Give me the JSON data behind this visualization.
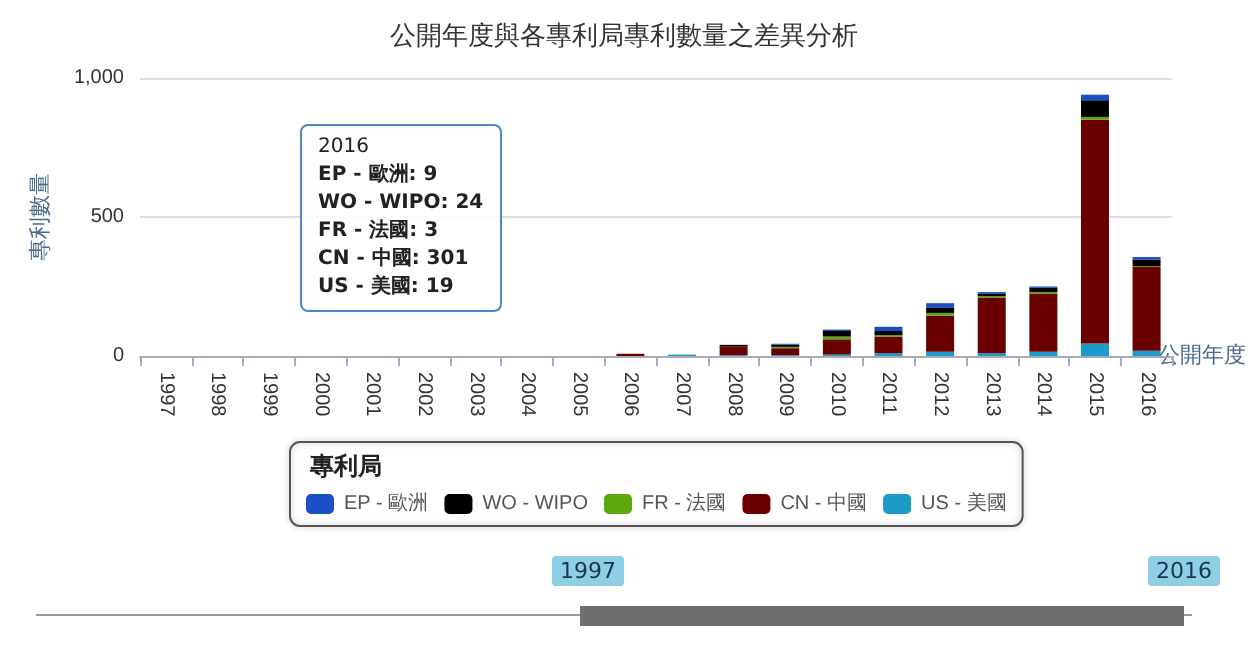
{
  "chart_data": {
    "type": "bar",
    "title": "公開年度與各專利局專利數量之差異分析",
    "xlabel": "公開年度",
    "ylabel": "專利數量",
    "legend_title": "專利局",
    "categories": [
      "1997",
      "1998",
      "1999",
      "2000",
      "2001",
      "2002",
      "2003",
      "2004",
      "2005",
      "2006",
      "2007",
      "2008",
      "2009",
      "2010",
      "2011",
      "2012",
      "2013",
      "2014",
      "2015",
      "2016"
    ],
    "stacked": true,
    "grid": "y",
    "legend": "bottom",
    "ylim": [
      0,
      1000
    ],
    "yticks": [
      0,
      {
        "value": 500,
        "label": "500"
      },
      {
        "value": 1000,
        "label": "1,000"
      }
    ],
    "series": [
      {
        "name": "US - 美國",
        "color": "#1a9bc8",
        "values": [
          0,
          0,
          0,
          0,
          0,
          0,
          0,
          0,
          0,
          0,
          5,
          3,
          3,
          5,
          10,
          15,
          10,
          15,
          45,
          19
        ]
      },
      {
        "name": "CN - 中國",
        "color": "#6b0000",
        "values": [
          0,
          0,
          0,
          0,
          0,
          0,
          0,
          0,
          0,
          8,
          0,
          32,
          25,
          55,
          60,
          130,
          200,
          210,
          805,
          301
        ]
      },
      {
        "name": "FR - 法國",
        "color": "#5aa80a",
        "values": [
          0,
          0,
          0,
          0,
          0,
          0,
          0,
          0,
          0,
          0,
          0,
          0,
          5,
          10,
          5,
          10,
          5,
          5,
          10,
          3
        ]
      },
      {
        "name": "WO - WIPO",
        "color": "#000000",
        "values": [
          0,
          0,
          0,
          0,
          0,
          0,
          0,
          0,
          0,
          0,
          0,
          5,
          8,
          20,
          15,
          20,
          10,
          15,
          60,
          24
        ]
      },
      {
        "name": "EP - 歐洲",
        "color": "#1a4fc8",
        "values": [
          0,
          0,
          0,
          0,
          0,
          0,
          0,
          0,
          0,
          0,
          0,
          0,
          3,
          5,
          15,
          15,
          5,
          5,
          20,
          9
        ]
      }
    ],
    "annotations": [
      "2016",
      "EP - 歐洲: 9",
      "WO - WIPO: 24",
      "FR - 法國: 3",
      "CN - 中國: 301",
      "US - 美國: 19"
    ]
  }
}
